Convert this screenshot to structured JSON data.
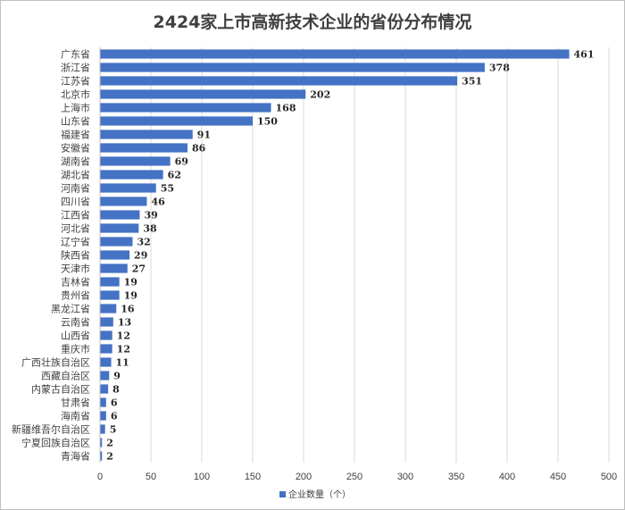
{
  "chart_data": {
    "type": "bar",
    "orientation": "horizontal",
    "title": "2424家上市高新技术企业的省份分布情况",
    "categories": [
      "广东省",
      "浙江省",
      "江苏省",
      "北京市",
      "上海市",
      "山东省",
      "福建省",
      "安徽省",
      "湖南省",
      "湖北省",
      "河南省",
      "四川省",
      "江西省",
      "河北省",
      "辽宁省",
      "陕西省",
      "天津市",
      "吉林省",
      "贵州省",
      "黑龙江省",
      "云南省",
      "山西省",
      "重庆市",
      "广西壮族自治区",
      "西藏自治区",
      "内蒙古自治区",
      "甘肃省",
      "海南省",
      "新疆维吾尔自治区",
      "宁夏回族自治区",
      "青海省"
    ],
    "series": [
      {
        "name": "企业数量（个）",
        "color": "#4472c4",
        "values": [
          461,
          378,
          351,
          202,
          168,
          150,
          91,
          86,
          69,
          62,
          55,
          46,
          39,
          38,
          32,
          29,
          27,
          19,
          19,
          16,
          13,
          12,
          12,
          11,
          9,
          8,
          6,
          6,
          5,
          2,
          2
        ]
      }
    ],
    "xlim": [
      0,
      500
    ],
    "xticks": [
      0,
      50,
      100,
      150,
      200,
      250,
      300,
      350,
      400,
      450,
      500
    ],
    "grid": true,
    "legend_position": "bottom"
  }
}
